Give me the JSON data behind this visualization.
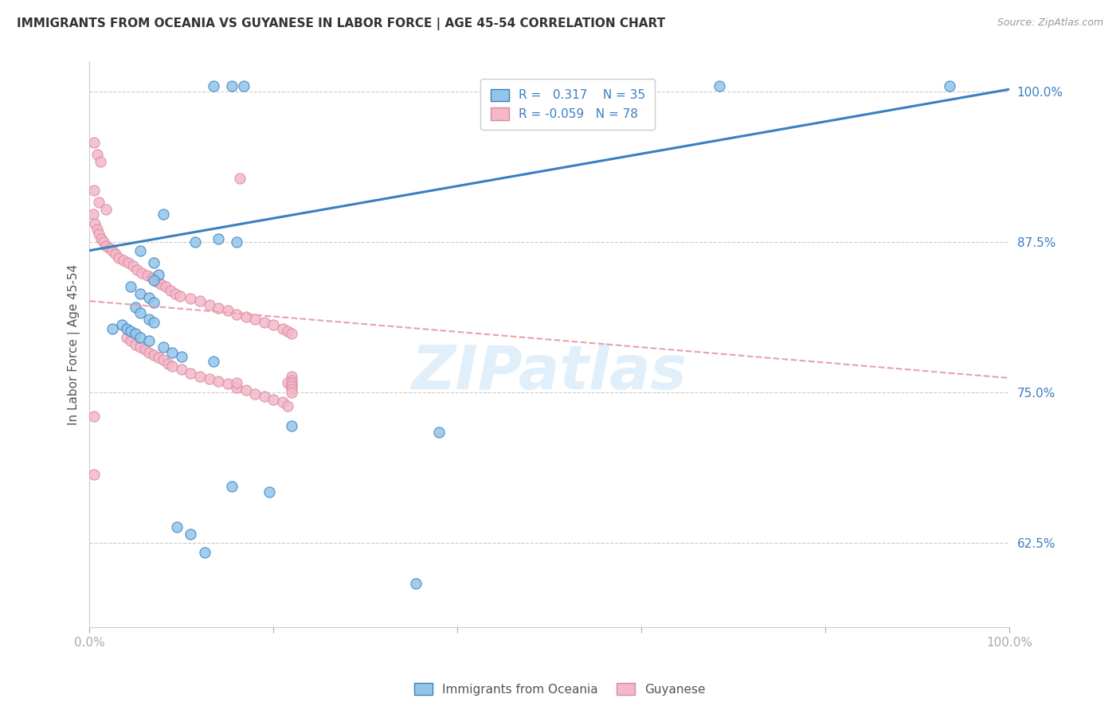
{
  "title": "IMMIGRANTS FROM OCEANIA VS GUYANESE IN LABOR FORCE | AGE 45-54 CORRELATION CHART",
  "source": "Source: ZipAtlas.com",
  "ylabel": "In Labor Force | Age 45-54",
  "xlim": [
    0.0,
    1.0
  ],
  "ylim": [
    0.555,
    1.025
  ],
  "ytick_positions": [
    0.625,
    0.75,
    0.875,
    1.0
  ],
  "ytick_labels": [
    "62.5%",
    "75.0%",
    "87.5%",
    "100.0%"
  ],
  "color_blue": "#92c5e8",
  "color_pink": "#f4b8c8",
  "color_blue_line": "#3a7fc1",
  "color_pink_line": "#e8a0b0",
  "watermark": "ZIPatlas",
  "blue_scatter": [
    [
      0.135,
      1.005
    ],
    [
      0.155,
      1.005
    ],
    [
      0.168,
      1.005
    ],
    [
      0.685,
      1.005
    ],
    [
      0.935,
      1.005
    ],
    [
      0.08,
      0.898
    ],
    [
      0.115,
      0.875
    ],
    [
      0.14,
      0.878
    ],
    [
      0.16,
      0.875
    ],
    [
      0.055,
      0.868
    ],
    [
      0.07,
      0.858
    ],
    [
      0.075,
      0.848
    ],
    [
      0.07,
      0.843
    ],
    [
      0.045,
      0.838
    ],
    [
      0.055,
      0.832
    ],
    [
      0.065,
      0.829
    ],
    [
      0.07,
      0.825
    ],
    [
      0.05,
      0.821
    ],
    [
      0.055,
      0.816
    ],
    [
      0.065,
      0.811
    ],
    [
      0.07,
      0.808
    ],
    [
      0.035,
      0.806
    ],
    [
      0.04,
      0.803
    ],
    [
      0.045,
      0.801
    ],
    [
      0.05,
      0.799
    ],
    [
      0.055,
      0.796
    ],
    [
      0.065,
      0.793
    ],
    [
      0.08,
      0.788
    ],
    [
      0.09,
      0.783
    ],
    [
      0.1,
      0.78
    ],
    [
      0.135,
      0.776
    ],
    [
      0.025,
      0.803
    ],
    [
      0.22,
      0.722
    ],
    [
      0.38,
      0.717
    ],
    [
      0.155,
      0.672
    ],
    [
      0.195,
      0.667
    ],
    [
      0.095,
      0.638
    ],
    [
      0.11,
      0.632
    ],
    [
      0.125,
      0.617
    ],
    [
      0.355,
      0.591
    ]
  ],
  "pink_scatter": [
    [
      0.005,
      0.958
    ],
    [
      0.008,
      0.948
    ],
    [
      0.012,
      0.942
    ],
    [
      0.163,
      0.928
    ],
    [
      0.005,
      0.918
    ],
    [
      0.01,
      0.908
    ],
    [
      0.018,
      0.902
    ],
    [
      0.004,
      0.898
    ],
    [
      0.006,
      0.89
    ],
    [
      0.008,
      0.886
    ],
    [
      0.01,
      0.882
    ],
    [
      0.013,
      0.878
    ],
    [
      0.015,
      0.875
    ],
    [
      0.018,
      0.872
    ],
    [
      0.022,
      0.87
    ],
    [
      0.025,
      0.868
    ],
    [
      0.028,
      0.865
    ],
    [
      0.032,
      0.862
    ],
    [
      0.037,
      0.86
    ],
    [
      0.042,
      0.858
    ],
    [
      0.047,
      0.855
    ],
    [
      0.052,
      0.852
    ],
    [
      0.057,
      0.849
    ],
    [
      0.063,
      0.847
    ],
    [
      0.068,
      0.845
    ],
    [
      0.073,
      0.842
    ],
    [
      0.078,
      0.84
    ],
    [
      0.083,
      0.838
    ],
    [
      0.088,
      0.835
    ],
    [
      0.093,
      0.832
    ],
    [
      0.098,
      0.83
    ],
    [
      0.11,
      0.828
    ],
    [
      0.12,
      0.826
    ],
    [
      0.13,
      0.823
    ],
    [
      0.14,
      0.82
    ],
    [
      0.15,
      0.818
    ],
    [
      0.16,
      0.815
    ],
    [
      0.17,
      0.813
    ],
    [
      0.18,
      0.811
    ],
    [
      0.19,
      0.808
    ],
    [
      0.2,
      0.806
    ],
    [
      0.21,
      0.803
    ],
    [
      0.215,
      0.801
    ],
    [
      0.22,
      0.799
    ],
    [
      0.04,
      0.796
    ],
    [
      0.045,
      0.793
    ],
    [
      0.05,
      0.79
    ],
    [
      0.055,
      0.788
    ],
    [
      0.06,
      0.786
    ],
    [
      0.065,
      0.783
    ],
    [
      0.07,
      0.781
    ],
    [
      0.075,
      0.779
    ],
    [
      0.08,
      0.777
    ],
    [
      0.085,
      0.774
    ],
    [
      0.09,
      0.772
    ],
    [
      0.1,
      0.769
    ],
    [
      0.11,
      0.766
    ],
    [
      0.12,
      0.763
    ],
    [
      0.13,
      0.761
    ],
    [
      0.14,
      0.759
    ],
    [
      0.15,
      0.757
    ],
    [
      0.16,
      0.754
    ],
    [
      0.17,
      0.752
    ],
    [
      0.18,
      0.749
    ],
    [
      0.19,
      0.747
    ],
    [
      0.2,
      0.744
    ],
    [
      0.21,
      0.742
    ],
    [
      0.215,
      0.739
    ],
    [
      0.22,
      0.763
    ],
    [
      0.005,
      0.73
    ],
    [
      0.22,
      0.76
    ],
    [
      0.005,
      0.682
    ],
    [
      0.16,
      0.758
    ],
    [
      0.215,
      0.758
    ],
    [
      0.22,
      0.756
    ],
    [
      0.22,
      0.758
    ],
    [
      0.22,
      0.755
    ],
    [
      0.22,
      0.753
    ],
    [
      0.22,
      0.75
    ]
  ],
  "blue_line_x": [
    0.0,
    1.0
  ],
  "blue_line_y": [
    0.868,
    1.002
  ],
  "pink_line_x": [
    0.0,
    1.0
  ],
  "pink_line_y": [
    0.826,
    0.762
  ]
}
